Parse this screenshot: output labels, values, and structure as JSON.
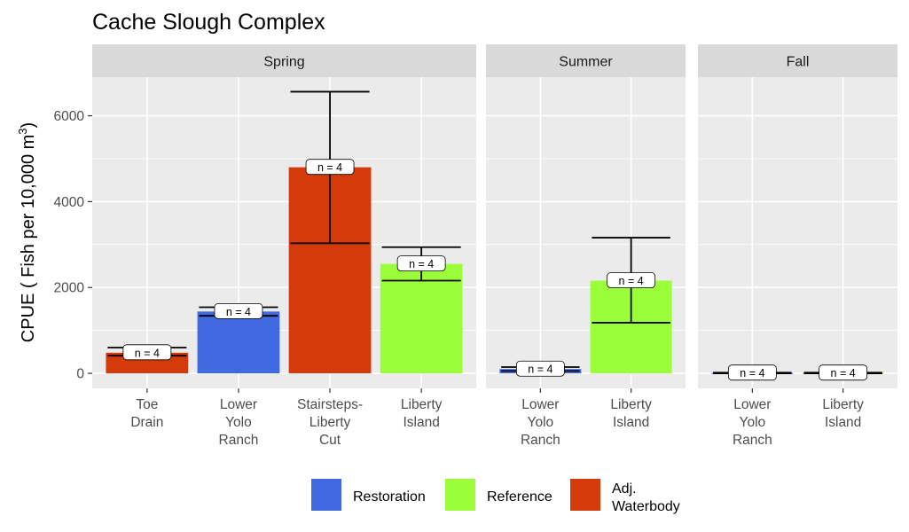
{
  "chart_data": {
    "type": "bar",
    "title": "Cache Slough Complex",
    "ylabel": "CPUE ( Fish per 10,000 m",
    "ylabel_sup": "3",
    "ylabel_close": ")",
    "ylim": [
      -350,
      6900
    ],
    "y_ticks": [
      0,
      2000,
      4000,
      6000
    ],
    "grid": true,
    "legend_position": "bottom",
    "legend": [
      {
        "key": "restoration",
        "label": "Restoration",
        "color": "#4169E1"
      },
      {
        "key": "reference",
        "label": "Reference",
        "color": "#9AFF3A"
      },
      {
        "key": "adjacent",
        "label": "Adj. Waterbody",
        "color": "#D43A0A"
      }
    ],
    "panels": [
      {
        "name": "Spring",
        "bars": [
          {
            "label": "Toe Drain",
            "category": "adjacent",
            "value": 480,
            "err_low": 410,
            "err_high": 600,
            "n_label": "n =  4"
          },
          {
            "label": "Lower Yolo Ranch",
            "category": "restoration",
            "value": 1440,
            "err_low": 1340,
            "err_high": 1540,
            "n_label": "n =  4"
          },
          {
            "label": "Stairsteps-Liberty Cut",
            "category": "adjacent",
            "value": 4800,
            "err_low": 3030,
            "err_high": 6560,
            "n_label": "n =  4"
          },
          {
            "label": "Liberty Island",
            "category": "reference",
            "value": 2550,
            "err_low": 2160,
            "err_high": 2940,
            "n_label": "n =  4"
          }
        ]
      },
      {
        "name": "Summer",
        "bars": [
          {
            "label": "Lower Yolo Ranch",
            "category": "restoration",
            "value": 100,
            "err_low": 55,
            "err_high": 145,
            "n_label": "n =  4"
          },
          {
            "label": "Liberty Island",
            "category": "reference",
            "value": 2160,
            "err_low": 1180,
            "err_high": 3160,
            "n_label": "n =  4"
          }
        ]
      },
      {
        "name": "Fall",
        "bars": [
          {
            "label": "Lower Yolo Ranch",
            "category": "restoration",
            "value": 8,
            "err_low": 0,
            "err_high": 16,
            "n_label": "n =  4"
          },
          {
            "label": "Liberty Island",
            "category": "reference",
            "value": 8,
            "err_low": 0,
            "err_high": 16,
            "n_label": "n =  4"
          }
        ]
      }
    ]
  }
}
